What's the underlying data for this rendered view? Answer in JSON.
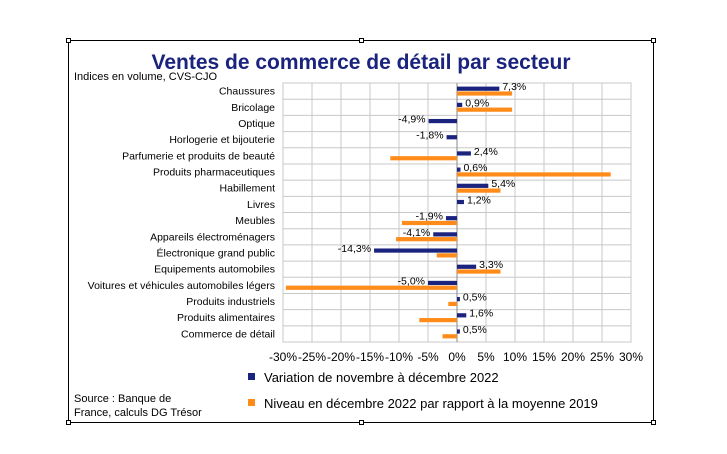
{
  "chart_data": {
    "type": "bar",
    "orientation": "horizontal",
    "title": "Ventes de commerce de détail par secteur",
    "subtitle": "Indices en volume, CVS-CJO",
    "categories": [
      "Chaussures",
      "Bricolage",
      "Optique",
      "Horlogerie et bijouterie",
      "Parfumerie et produits de beauté",
      "Produits pharmaceutiques",
      "Habillement",
      "Livres",
      "Meubles",
      "Appareils électroménagers",
      "Électronique grand public",
      "Equipements automobiles",
      "Voitures et véhicules automobiles légers",
      "Produits industriels",
      "Produits alimentaires",
      "Commerce de détail"
    ],
    "series": [
      {
        "name": "Variation de novembre à décembre 2022",
        "color": "#1a237e",
        "values": [
          7.3,
          0.9,
          -4.9,
          -1.8,
          2.4,
          0.6,
          5.4,
          1.2,
          -1.9,
          -4.1,
          -14.3,
          3.3,
          -5.0,
          0.5,
          1.6,
          0.5
        ],
        "labels": [
          "7,3%",
          "0,9%",
          "-4,9%",
          "-1,8%",
          "2,4%",
          "0,6%",
          "5,4%",
          "1,2%",
          "-1,9%",
          "-4,1%",
          "-14,3%",
          "3,3%",
          "-5,0%",
          "0,5%",
          "1,6%",
          "0,5%"
        ]
      },
      {
        "name": "Niveau en décembre 2022 par rapport à la moyenne 2019",
        "color": "#ff8c1a",
        "values": [
          9.5,
          9.5,
          0,
          0,
          -11.5,
          26.5,
          7.5,
          0,
          -9.5,
          -10.5,
          -3.5,
          7.5,
          -29.5,
          -1.5,
          -6.5,
          -2.5
        ]
      }
    ],
    "xlim": [
      -30,
      30
    ],
    "xticks": [
      -30,
      -25,
      -20,
      -15,
      -10,
      -5,
      0,
      5,
      10,
      15,
      20,
      25,
      30
    ],
    "xtick_labels": [
      "-30%",
      "-25%",
      "-20%",
      "-15%",
      "-10%",
      "-5%",
      "0%",
      "5%",
      "10%",
      "15%",
      "20%",
      "25%",
      "30%"
    ],
    "grid": true,
    "legend_position": "bottom",
    "source": "Source : Banque de France, calculs DG Trésor",
    "source_lines": [
      "Source : Banque de",
      "France, calculs DG Trésor"
    ]
  }
}
